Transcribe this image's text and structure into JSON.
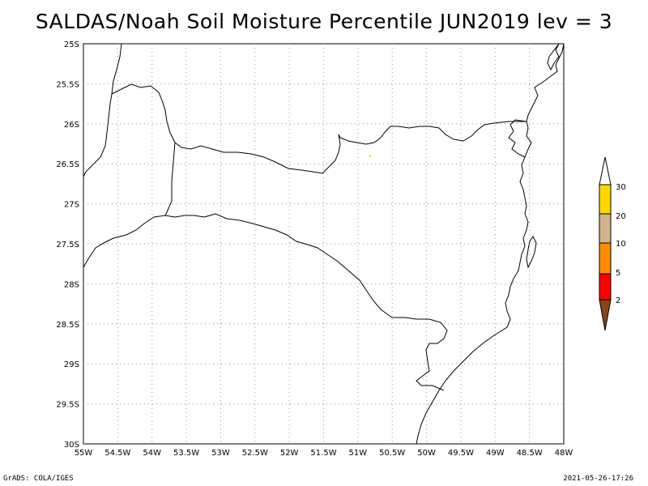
{
  "title": "SALDAS/Noah Soil Moisture Percentile JUN2019 lev = 3",
  "footer": {
    "left": "GrADS: COLA/IGES",
    "right": "2021-05-26-17:26"
  },
  "map": {
    "lon_range": [
      -55,
      -48
    ],
    "lat_range": [
      -30,
      -25
    ],
    "x_ticks": [
      "55W",
      "54.5W",
      "54W",
      "53.5W",
      "53W",
      "52.5W",
      "52W",
      "51.5W",
      "51W",
      "50.5W",
      "50W",
      "49.5W",
      "49W",
      "48.5W",
      "48W"
    ],
    "y_ticks": [
      "25S",
      "25.5S",
      "26S",
      "26.5S",
      "27S",
      "27.5S",
      "28S",
      "28.5S",
      "29S",
      "29.5S",
      "30S"
    ],
    "grid": true,
    "shaded_pixel": {
      "lon": -50.82,
      "lat": -26.4,
      "class": "20-30",
      "color": "#ffd000"
    }
  },
  "colorbar": {
    "labels": [
      "2",
      "5",
      "10",
      "20",
      "30"
    ],
    "colors": [
      "#8b4513",
      "#ff0000",
      "#ff8c00",
      "#d2b48c",
      "#ffd700"
    ],
    "position": "right"
  }
}
